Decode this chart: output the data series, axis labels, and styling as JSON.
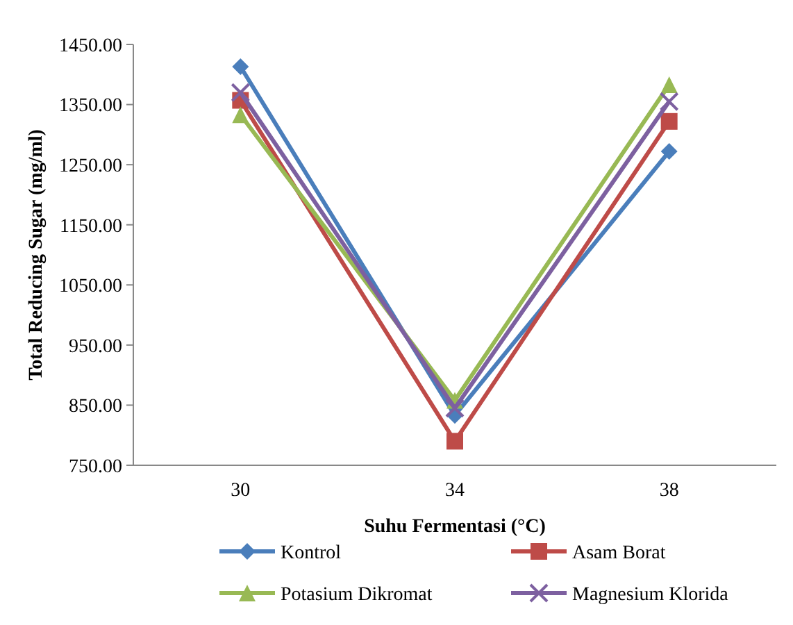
{
  "chart_data": {
    "type": "line",
    "xlabel": "Suhu Fermentasi (°C)",
    "ylabel": "Total Reducing Sugar (mg/ml)",
    "categories": [
      "30",
      "34",
      "38"
    ],
    "ylim": [
      750,
      1450
    ],
    "yticks": [
      {
        "value": 750,
        "label": "750.00"
      },
      {
        "value": 850,
        "label": "850.00"
      },
      {
        "value": 950,
        "label": "950.00"
      },
      {
        "value": 1050,
        "label": "1050.00"
      },
      {
        "value": 1150,
        "label": "1150.00"
      },
      {
        "value": 1250,
        "label": "1250.00"
      },
      {
        "value": 1350,
        "label": "1350.00"
      },
      {
        "value": 1450,
        "label": "1450.00"
      }
    ],
    "grid": false,
    "legend": "bottom",
    "line_style": "solid",
    "series": [
      {
        "name": "Kontrol",
        "color": "#4a7ebb",
        "marker": "diamond",
        "values": [
          1413,
          833,
          1272
        ]
      },
      {
        "name": "Asam Borat",
        "color": "#be4b48",
        "marker": "square",
        "values": [
          1357,
          790,
          1322
        ]
      },
      {
        "name": "Potasium Dikromat",
        "color": "#98b954",
        "marker": "triangle",
        "values": [
          1333,
          858,
          1383
        ]
      },
      {
        "name": "Magnesium Klorida",
        "color": "#7d60a0",
        "marker": "cross",
        "values": [
          1370,
          845,
          1355
        ]
      }
    ]
  }
}
